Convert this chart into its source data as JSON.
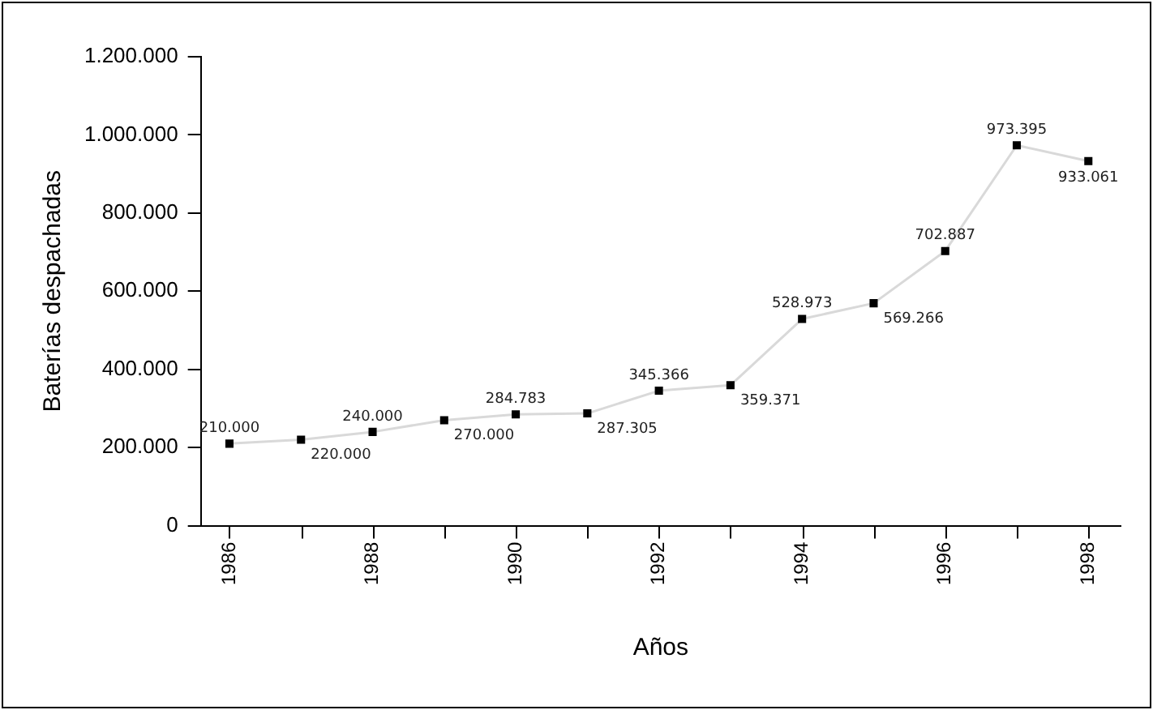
{
  "chart_data": {
    "type": "line",
    "xlabel": "Años",
    "ylabel": "Baterías despachadas",
    "x": [
      1986,
      1987,
      1988,
      1989,
      1990,
      1991,
      1992,
      1993,
      1994,
      1995,
      1996,
      1997,
      1998
    ],
    "series": [
      {
        "color": "#d9d9d9",
        "values": [
          210000,
          220000,
          240000,
          270000,
          284783,
          287305,
          345366,
          359371,
          528973,
          569266,
          702887,
          973395,
          933061
        ],
        "value_labels": [
          "210.000",
          "220.000",
          "240.000",
          "270.000",
          "284.783",
          "287.305",
          "345.366",
          "359.371",
          "528.973",
          "569.266",
          "702.887",
          "973.395",
          "933.061"
        ]
      }
    ],
    "xlim": [
      1985.6,
      1998.45
    ],
    "xticks": [
      1986,
      {
        "value": 1987,
        "label": null
      },
      1988,
      {
        "value": 1989,
        "label": null
      },
      1990,
      {
        "value": 1991,
        "label": null
      },
      1992,
      {
        "value": 1993,
        "label": null
      },
      1994,
      {
        "value": 1995,
        "label": null
      },
      1996,
      {
        "value": 1997,
        "label": null
      },
      1998
    ],
    "ylim": [
      0,
      1200000
    ],
    "yticks": [
      0,
      {
        "value": 200000,
        "label": "200.000"
      },
      {
        "value": 400000,
        "label": "400.000"
      },
      {
        "value": 600000,
        "label": "600.000"
      },
      {
        "value": 800000,
        "label": "800.000"
      },
      {
        "value": 1000000,
        "label": "1.000.000"
      },
      {
        "value": 1200000,
        "label": "1.200.000"
      }
    ],
    "grid": false,
    "legend": false,
    "marker": "square",
    "line_style": "solid"
  }
}
